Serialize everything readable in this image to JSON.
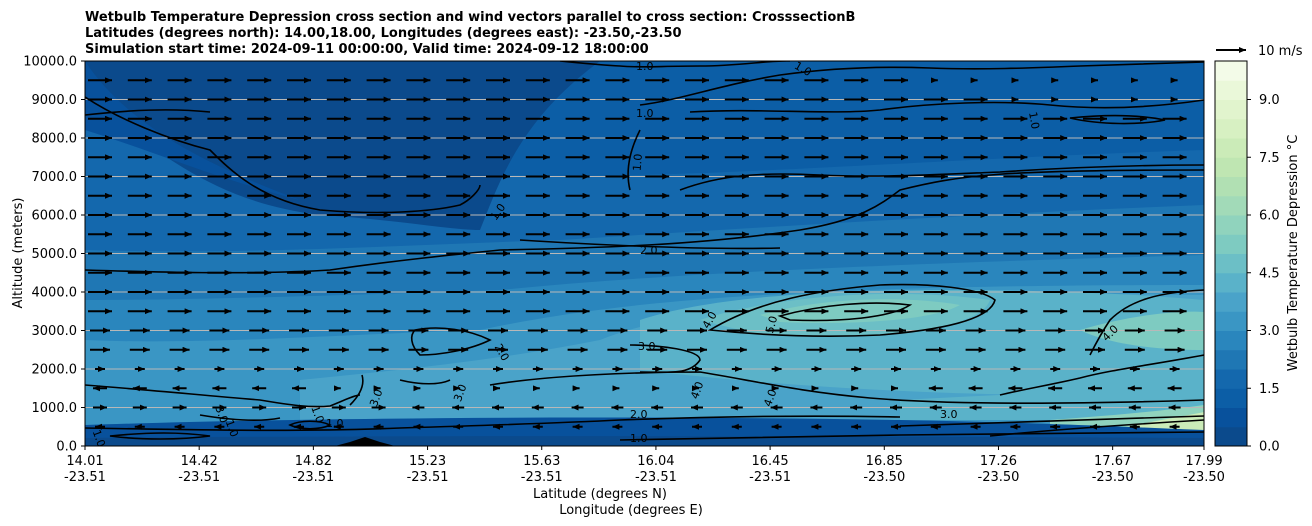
{
  "chart_data": {
    "type": "filled-contour cross section with wind vectors",
    "title_lines": [
      "Wetbulb Temperature Depression cross section and wind vectors parallel to cross section: CrosssectionB",
      "Latitudes (degrees north): 14.00,18.00, Longitudes (degrees east): -23.50,-23.50",
      "Simulation start time: 2024-09-11 00:00:00, Valid time: 2024-09-12 18:00:00"
    ],
    "xlabel_line1": "Latitude (degrees N)",
    "xlabel_line2": "Longitude (degrees E)",
    "ylabel": "Altitude (meters)",
    "x_ticks": [
      {
        "lat": "14.01",
        "lon": "-23.51",
        "frac": 0.0
      },
      {
        "lat": "14.42",
        "lon": "-23.51",
        "frac": 0.1
      },
      {
        "lat": "14.82",
        "lon": "-23.51",
        "frac": 0.2
      },
      {
        "lat": "15.23",
        "lon": "-23.51",
        "frac": 0.3
      },
      {
        "lat": "15.63",
        "lon": "-23.51",
        "frac": 0.4
      },
      {
        "lat": "16.04",
        "lon": "-23.51",
        "frac": 0.5
      },
      {
        "lat": "16.45",
        "lon": "-23.51",
        "frac": 0.6
      },
      {
        "lat": "16.85",
        "lon": "-23.50",
        "frac": 0.7
      },
      {
        "lat": "17.26",
        "lon": "-23.50",
        "frac": 0.8
      },
      {
        "lat": "17.67",
        "lon": "-23.50",
        "frac": 0.9
      },
      {
        "lat": "17.99",
        "lon": "-23.50",
        "frac": 0.98
      }
    ],
    "y_ticks": [
      "0.0",
      "1000.0",
      "2000.0",
      "3000.0",
      "4000.0",
      "5000.0",
      "6000.0",
      "7000.0",
      "8000.0",
      "9000.0",
      "10000.0"
    ],
    "ylim": [
      0,
      10000
    ],
    "grid": "horizontal",
    "colorbar": {
      "label": "Wetbulb Temperature Depression $^\\circ$C",
      "ticks": [
        "0.0",
        "1.5",
        "3.0",
        "4.5",
        "6.0",
        "7.5",
        "9.0"
      ],
      "range": [
        0,
        10
      ],
      "levels": 20,
      "colors": [
        "#0b4a8c",
        "#08519c",
        "#0c5ea6",
        "#1468ad",
        "#1f77b4",
        "#2a86bd",
        "#3a96c4",
        "#4aa3c9",
        "#5ab2c9",
        "#6cbfc6",
        "#7ecbc1",
        "#90d3bd",
        "#a2dab8",
        "#b1e0b3",
        "#bfe6b2",
        "#cbebb8",
        "#d7f0c2",
        "#e1f4cd",
        "#eaf8d9",
        "#f3fbe8"
      ]
    },
    "reference_vector": "10 m/s",
    "contour_labels": [
      "1.0",
      "2.0",
      "3.0",
      "4.0",
      "5.0"
    ]
  }
}
